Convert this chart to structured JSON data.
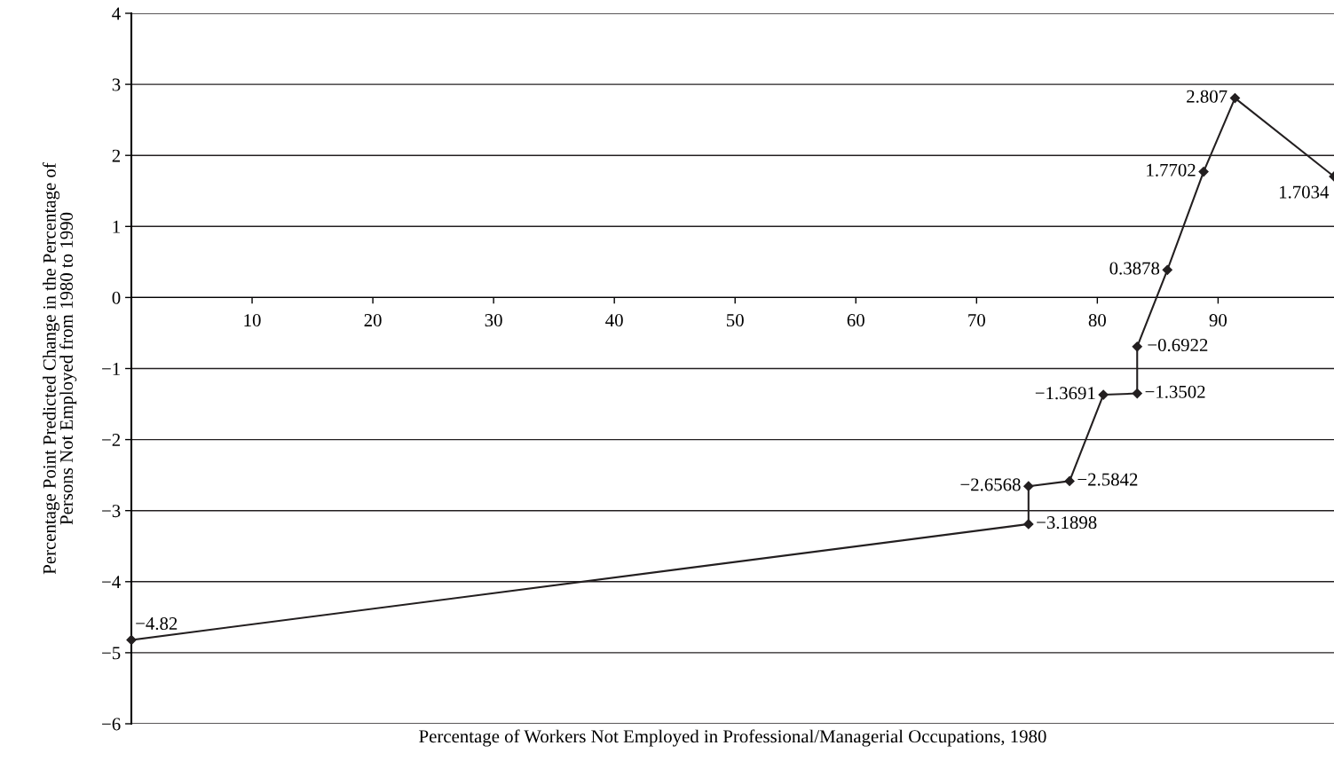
{
  "chart_data": {
    "type": "line",
    "xlabel": "Percentage of Workers Not Employed in Professional/Managerial Occupations, 1980",
    "ylabel": "Percentage Point Predicted Change in the Percentage of\nPersons Not Employed from 1980 to 1990",
    "x": [
      0,
      74.3,
      74.3,
      77.7,
      80.5,
      83.3,
      83.3,
      85.8,
      88.8,
      91.4,
      99.6
    ],
    "series": [
      {
        "color": "#231f20",
        "values": [
          -4.82,
          -3.1898,
          -2.6568,
          -2.5842,
          -1.3691,
          -1.3502,
          -0.6922,
          0.3878,
          1.7702,
          2.807,
          1.7034
        ]
      }
    ],
    "xlim": [
      0,
      99.6
    ],
    "ylim": [
      -6,
      4
    ],
    "xticks": [
      10,
      20,
      30,
      40,
      50,
      60,
      70,
      80,
      90
    ],
    "yticks": [
      -6,
      -5,
      -4,
      -3,
      -2,
      -1,
      0,
      1,
      2,
      3,
      4
    ],
    "grid": "y",
    "marker": "diamond",
    "line_style": "solid",
    "data_labels": true
  }
}
